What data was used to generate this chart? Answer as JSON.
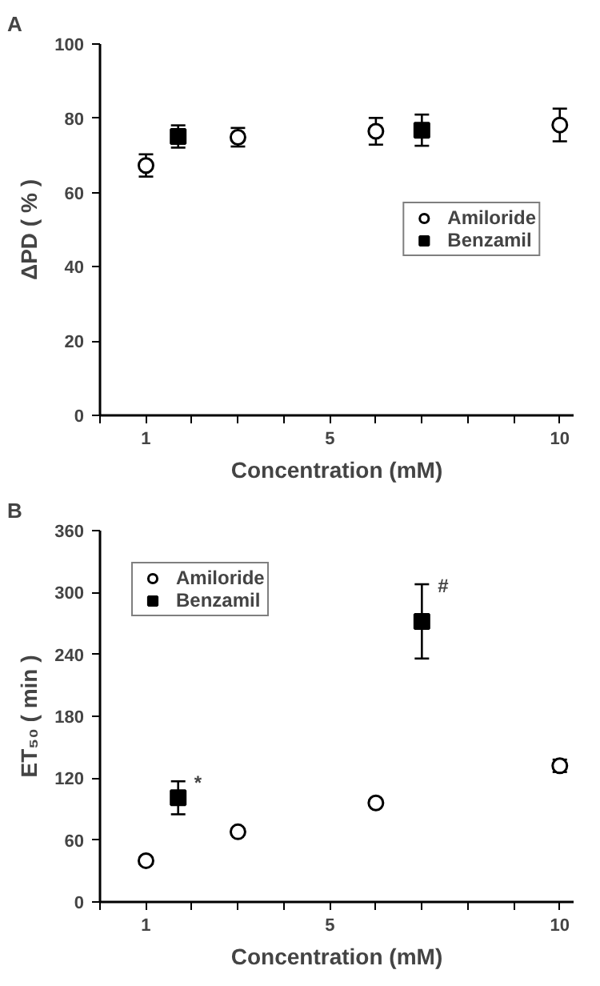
{
  "chart_data": [
    {
      "type": "scatter",
      "title": "A",
      "xlabel": "Concentration (mM)",
      "ylabel": "ΔPD ( % )",
      "xlim": [
        0,
        10.3
      ],
      "ylim": [
        0,
        100
      ],
      "xticks": [
        {
          "value": 0,
          "label": null
        },
        1,
        {
          "value": 2,
          "label": null
        },
        {
          "value": 3,
          "label": null
        },
        {
          "value": 4,
          "label": null
        },
        5,
        {
          "value": 6,
          "label": null
        },
        {
          "value": 7,
          "label": null
        },
        {
          "value": 8,
          "label": null
        },
        {
          "value": 9,
          "label": null
        },
        10
      ],
      "yticks": [
        0,
        20,
        40,
        60,
        80,
        100
      ],
      "grid": false,
      "legend": "right",
      "series": [
        {
          "name": "Amiloride",
          "color": "#000000",
          "marker": "circle",
          "x": [
            1,
            3,
            6,
            10
          ],
          "values": [
            67.3,
            74.9,
            76.5,
            78.2
          ],
          "errors": [
            3,
            2.5,
            3.6,
            4.4
          ]
        },
        {
          "name": "Benzamil",
          "color": "#000000",
          "marker": "square",
          "x": [
            1.7,
            7
          ],
          "values": [
            75.1,
            76.8
          ],
          "errors": [
            3,
            4.2
          ]
        }
      ]
    },
    {
      "type": "scatter",
      "title": "B",
      "xlabel": "Concentration (mM)",
      "ylabel": "ET₅₀ ( min )",
      "xlim": [
        0,
        10.3
      ],
      "ylim": [
        0,
        360
      ],
      "xticks": [
        {
          "value": 0,
          "label": null
        },
        1,
        {
          "value": 2,
          "label": null
        },
        {
          "value": 3,
          "label": null
        },
        {
          "value": 4,
          "label": null
        },
        5,
        {
          "value": 6,
          "label": null
        },
        {
          "value": 7,
          "label": null
        },
        {
          "value": 8,
          "label": null
        },
        {
          "value": 9,
          "label": null
        },
        10
      ],
      "yticks": [
        0,
        60,
        120,
        180,
        240,
        300,
        360
      ],
      "grid": false,
      "legend": "top left",
      "annotations": [
        {
          "text": "*",
          "x": 1.7,
          "y": 117
        },
        {
          "text": "#",
          "x": 7,
          "y": 308
        }
      ],
      "series": [
        {
          "name": "Amiloride",
          "color": "#000000",
          "marker": "circle",
          "x": [
            1,
            3,
            6,
            10
          ],
          "values": [
            40,
            68,
            96,
            132
          ],
          "errors": [
            3,
            3,
            3,
            6
          ]
        },
        {
          "name": "Benzamil",
          "color": "#000000",
          "marker": "square",
          "x": [
            1.7,
            7
          ],
          "values": [
            101,
            272
          ],
          "errors": [
            16,
            [
              236,
              308
            ]
          ]
        }
      ]
    }
  ]
}
